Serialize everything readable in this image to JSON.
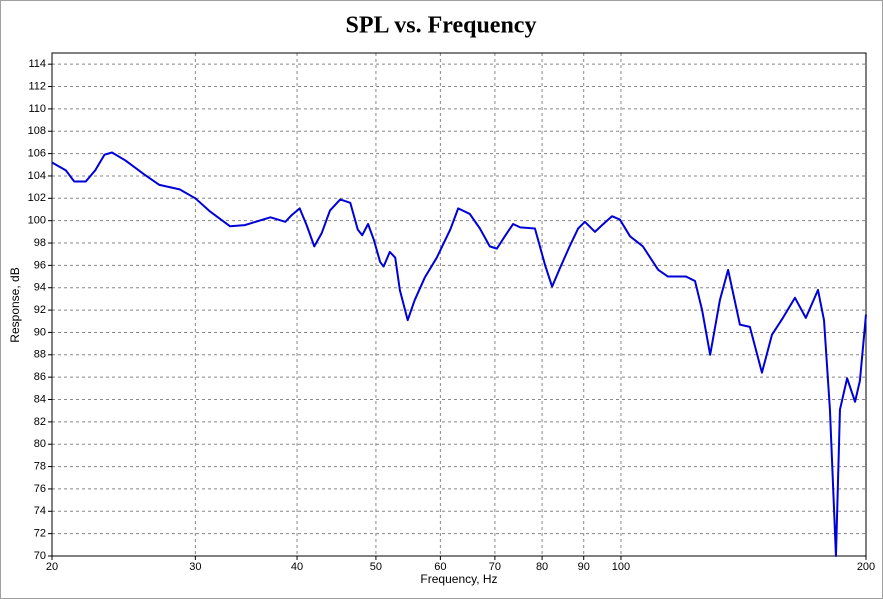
{
  "chart_data": {
    "type": "line",
    "title": "SPL vs. Frequency",
    "x_label": "Frequency, Hz",
    "y_label": "Response, dB",
    "log_x": true,
    "grid": true,
    "xlim": [
      20,
      200
    ],
    "ylim": [
      70,
      115
    ],
    "xticks": [
      20,
      30,
      40,
      50,
      60,
      70,
      80,
      90,
      100,
      200
    ],
    "yticks": [
      70,
      72,
      74,
      76,
      78,
      80,
      82,
      84,
      86,
      88,
      90,
      92,
      94,
      96,
      98,
      100,
      102,
      104,
      106,
      108,
      110,
      112,
      114
    ],
    "x": [
      20,
      20.8,
      21.3,
      22.0,
      22.6,
      23.2,
      23.7,
      24.6,
      26.0,
      27.1,
      28.7,
      30.0,
      31.3,
      33.1,
      34.5,
      37.1,
      38.7,
      39.4,
      40.3,
      41.1,
      42.0,
      42.9,
      43.9,
      45.2,
      46.5,
      47.5,
      48.1,
      48.9,
      49.7,
      50.6,
      51.1,
      52.0,
      52.8,
      53.5,
      54.7,
      55.8,
      57.4,
      59.4,
      61.7,
      63.1,
      65.2,
      67.1,
      69.0,
      70.4,
      72.0,
      73.7,
      75.2,
      78.4,
      80.7,
      82.3,
      84.2,
      86.6,
      88.6,
      90.3,
      92.9,
      94.8,
      97.5,
      99.7,
      102.6,
      106.4,
      111.1,
      114.2,
      120.2,
      123.3,
      125.8,
      128.7,
      132.3,
      135.4,
      140.0,
      144.0,
      149.0,
      153.3,
      158.1,
      163.6,
      168.7,
      174.6,
      177.6,
      180.6,
      183.7,
      185.8,
      189.6,
      193.9,
      196.6,
      200
    ],
    "series": [
      {
        "name": "Response",
        "color": "#0000d8",
        "values": [
          105.2,
          104.5,
          103.5,
          103.5,
          104.5,
          105.9,
          106.1,
          105.4,
          104.1,
          103.2,
          102.8,
          102.0,
          100.8,
          99.5,
          99.6,
          100.3,
          99.9,
          100.5,
          101.1,
          99.6,
          97.7,
          98.9,
          100.9,
          101.9,
          101.6,
          99.2,
          98.7,
          99.7,
          98.3,
          96.3,
          95.9,
          97.2,
          96.7,
          93.8,
          91.1,
          92.9,
          94.9,
          96.7,
          99.2,
          101.1,
          100.6,
          99.3,
          97.7,
          97.5,
          98.6,
          99.7,
          99.4,
          99.3,
          96.0,
          94.1,
          95.8,
          97.8,
          99.3,
          99.9,
          99.0,
          99.6,
          100.4,
          100.1,
          98.6,
          97.7,
          95.6,
          95.0,
          95.0,
          94.6,
          92.0,
          88.0,
          92.9,
          95.6,
          90.7,
          90.5,
          86.4,
          89.8,
          91.3,
          93.1,
          91.3,
          93.8,
          91.1,
          83.1,
          70,
          83.1,
          85.9,
          83.8,
          85.7,
          91.6
        ]
      }
    ]
  }
}
